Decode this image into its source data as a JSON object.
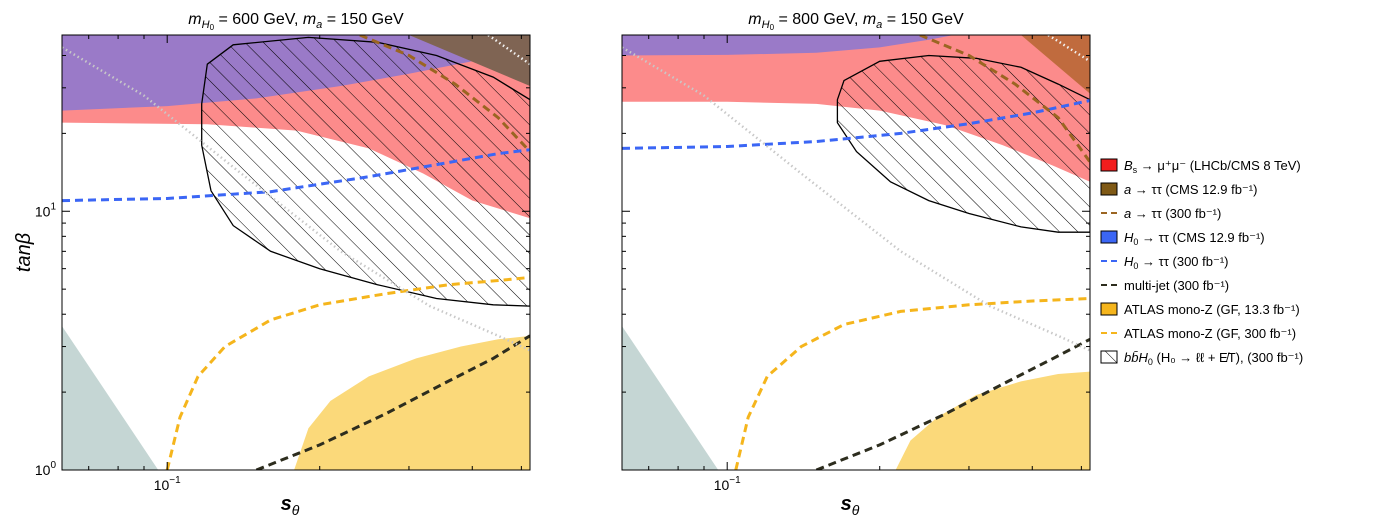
{
  "chart_data": [
    {
      "type": "area",
      "title": "m_{H0} = 600 GeV, m_a = 150 GeV",
      "title_parts": {
        "m1": "m",
        "m1sub": "H",
        "m1subsub": "0",
        "m1val": " = 600 GeV, ",
        "m2": "m",
        "m2sub": "a",
        "m2val": " = 150 GeV"
      },
      "xlabel": "s_θ",
      "xlabel_parts": {
        "main": "s",
        "sub": "θ"
      },
      "ylabel": "tanβ",
      "xscale": "log",
      "yscale": "log",
      "xlim": [
        0.062,
        0.52
      ],
      "ylim": [
        1,
        48
      ],
      "x_ticklabels": [
        {
          "value": 0.1,
          "base": "10",
          "exp": "−1"
        }
      ],
      "y_ticklabels": [
        {
          "value": 1,
          "base": "10",
          "exp": "0"
        },
        {
          "value": 10,
          "base": "10",
          "exp": "1"
        }
      ],
      "series": [
        {
          "name": "ATLAS mono-Z (GF, 13.3 fb⁻¹)",
          "kind": "region",
          "color": "#fbd97a",
          "boundary": [
            [
              0.178,
              1.0
            ],
            [
              0.19,
              1.45
            ],
            [
              0.21,
              1.85
            ],
            [
              0.25,
              2.3
            ],
            [
              0.31,
              2.7
            ],
            [
              0.38,
              3.0
            ],
            [
              0.45,
              3.2
            ],
            [
              0.52,
              3.3
            ]
          ]
        },
        {
          "name": "grey region",
          "kind": "region",
          "color": "#c5d6d4",
          "points": [
            [
              0.062,
              1.0
            ],
            [
              0.062,
              3.6
            ],
            [
              0.096,
              1.0
            ]
          ]
        },
        {
          "name": "B_s → μ⁺μ⁻ (LHCb/CMS 8 TeV)",
          "kind": "region",
          "color": "#fc8b8b",
          "lower_boundary": [
            [
              0.062,
              22.0
            ],
            [
              0.12,
              21.7
            ],
            [
              0.18,
              20.5
            ],
            [
              0.25,
              17.5
            ],
            [
              0.32,
              14.0
            ],
            [
              0.4,
              11.0
            ],
            [
              0.52,
              9.4
            ]
          ]
        },
        {
          "name": "purple region",
          "kind": "region",
          "color": "#9a7ac8",
          "lower_boundary": [
            [
              0.062,
              24.5
            ],
            [
              0.1,
              25.5
            ],
            [
              0.15,
              27.3
            ],
            [
              0.22,
              30.5
            ],
            [
              0.3,
              34.0
            ],
            [
              0.4,
              38.0
            ],
            [
              0.52,
              43.0
            ]
          ]
        },
        {
          "name": "a → ττ (CMS 12.9 fb⁻¹)",
          "kind": "region",
          "color": "#7f6453",
          "points": [
            [
              0.3,
              48
            ],
            [
              0.52,
              48
            ],
            [
              0.52,
              30.5
            ]
          ]
        },
        {
          "name": "H₀ → ττ (CMS 12.9 fb⁻¹)",
          "kind": "line",
          "color": "#3b66f5",
          "points": [
            [
              0.062,
              11.0
            ],
            [
              0.1,
              11.2
            ],
            [
              0.16,
              11.9
            ],
            [
              0.25,
              13.6
            ],
            [
              0.35,
              15.3
            ],
            [
              0.45,
              16.7
            ],
            [
              0.52,
              17.3
            ]
          ]
        },
        {
          "name": "a → ττ (300 fb⁻¹)",
          "kind": "line",
          "color": "#9b6522",
          "points": [
            [
              0.24,
              48
            ],
            [
              0.3,
              40
            ],
            [
              0.37,
              31
            ],
            [
              0.45,
              23
            ],
            [
              0.52,
              17
            ]
          ]
        },
        {
          "name": "ATLAS mono-Z (GF, 300 fb⁻¹)",
          "kind": "line",
          "color": "#f5b51c",
          "points": [
            [
              0.1,
              1.0
            ],
            [
              0.106,
              1.6
            ],
            [
              0.115,
              2.3
            ],
            [
              0.13,
              3.0
            ],
            [
              0.16,
              3.8
            ],
            [
              0.2,
              4.35
            ],
            [
              0.27,
              4.8
            ],
            [
              0.36,
              5.2
            ],
            [
              0.45,
              5.4
            ],
            [
              0.52,
              5.55
            ]
          ]
        },
        {
          "name": "multi-jet (300 fb⁻¹)",
          "kind": "line",
          "color": "#2d2d1e",
          "points": [
            [
              0.15,
              1.0
            ],
            [
              0.2,
              1.25
            ],
            [
              0.27,
              1.65
            ],
            [
              0.35,
              2.15
            ],
            [
              0.44,
              2.7
            ],
            [
              0.52,
              3.3
            ]
          ]
        },
        {
          "name": "grey dotted",
          "kind": "line",
          "color": "#c8c8c8",
          "points": [
            [
              0.062,
              43
            ],
            [
              0.09,
              28
            ],
            [
              0.14,
              14
            ],
            [
              0.22,
              7.0
            ],
            [
              0.33,
              4.3
            ],
            [
              0.45,
              3.3
            ],
            [
              0.52,
              2.9
            ]
          ]
        },
        {
          "name": "white dotted",
          "kind": "line",
          "color": "#f2f2f2",
          "points": [
            [
              0.43,
              48
            ],
            [
              0.52,
              37
            ]
          ]
        },
        {
          "name": "bb̄H₀ (H₀ → ℓℓ + E̸T), (300 fb⁻¹)",
          "kind": "hatched-contour",
          "color": "#000000",
          "points": [
            [
              0.12,
              37
            ],
            [
              0.135,
              44
            ],
            [
              0.19,
              47
            ],
            [
              0.26,
              45
            ],
            [
              0.34,
              40
            ],
            [
              0.44,
              33
            ],
            [
              0.52,
              27
            ],
            [
              0.52,
              4.3
            ],
            [
              0.44,
              4.35
            ],
            [
              0.34,
              4.6
            ],
            [
              0.26,
              5.2
            ],
            [
              0.2,
              6.0
            ],
            [
              0.16,
              7.0
            ],
            [
              0.135,
              8.8
            ],
            [
              0.122,
              12.0
            ],
            [
              0.117,
              18.0
            ],
            [
              0.117,
              26.0
            ],
            [
              0.12,
              37
            ]
          ]
        }
      ]
    },
    {
      "type": "area",
      "title": "m_{H0} = 800 GeV, m_a = 150 GeV",
      "title_parts": {
        "m1": "m",
        "m1sub": "H",
        "m1subsub": "0",
        "m1val": " = 800 GeV, ",
        "m2": "m",
        "m2sub": "a",
        "m2val": " = 150 GeV"
      },
      "xlabel": "s_θ",
      "xlabel_parts": {
        "main": "s",
        "sub": "θ"
      },
      "ylabel": "",
      "xscale": "log",
      "yscale": "log",
      "xlim": [
        0.062,
        0.52
      ],
      "ylim": [
        1,
        48
      ],
      "x_ticklabels": [
        {
          "value": 0.1,
          "base": "10",
          "exp": "−1"
        }
      ],
      "y_ticklabels": [],
      "series": [
        {
          "name": "ATLAS mono-Z (GF, 13.3 fb⁻¹)",
          "kind": "region",
          "color": "#fbd97a",
          "boundary": [
            [
              0.215,
              1.0
            ],
            [
              0.23,
              1.3
            ],
            [
              0.26,
              1.6
            ],
            [
              0.31,
              1.95
            ],
            [
              0.38,
              2.2
            ],
            [
              0.45,
              2.35
            ],
            [
              0.52,
              2.4
            ]
          ]
        },
        {
          "name": "grey region",
          "kind": "region",
          "color": "#c5d6d4",
          "points": [
            [
              0.062,
              1.0
            ],
            [
              0.062,
              3.6
            ],
            [
              0.096,
              1.0
            ]
          ]
        },
        {
          "name": "B_s → μ⁺μ⁻ (LHCb/CMS 8 TeV)",
          "kind": "region",
          "color": "#fc8b8b",
          "lower_boundary": [
            [
              0.062,
              26.5
            ],
            [
              0.1,
              26.5
            ],
            [
              0.15,
              26.0
            ],
            [
              0.2,
              24.5
            ],
            [
              0.27,
              21.5
            ],
            [
              0.35,
              18.0
            ],
            [
              0.44,
              15.0
            ],
            [
              0.52,
              13.0
            ]
          ]
        },
        {
          "name": "purple region",
          "kind": "region",
          "color": "#9a7ac8",
          "lower_boundary": [
            [
              0.062,
              40.0
            ],
            [
              0.1,
              40.2
            ],
            [
              0.15,
              41.0
            ],
            [
              0.2,
              43.0
            ],
            [
              0.25,
              46.0
            ],
            [
              0.28,
              48.0
            ]
          ]
        },
        {
          "name": "a → ττ (CMS 12.9 fb⁻¹)",
          "kind": "region",
          "color": "#c06b3e",
          "points": [
            [
              0.38,
              48
            ],
            [
              0.52,
              48
            ],
            [
              0.52,
              28.5
            ]
          ]
        },
        {
          "name": "H₀ → ττ (CMS 12.9 fb⁻¹)",
          "kind": "line",
          "color": "#3b66f5",
          "points": [
            [
              0.062,
              17.5
            ],
            [
              0.1,
              17.8
            ],
            [
              0.15,
              18.6
            ],
            [
              0.22,
              20.0
            ],
            [
              0.3,
              21.8
            ],
            [
              0.4,
              24.0
            ],
            [
              0.52,
              26.8
            ]
          ]
        },
        {
          "name": "a → ττ (300 fb⁻¹)",
          "kind": "line",
          "color": "#9b6522",
          "points": [
            [
              0.24,
              48
            ],
            [
              0.3,
              40
            ],
            [
              0.37,
              31
            ],
            [
              0.45,
              23
            ],
            [
              0.52,
              15.5
            ]
          ]
        },
        {
          "name": "ATLAS mono-Z (GF, 300 fb⁻¹)",
          "kind": "line",
          "color": "#f5b51c",
          "points": [
            [
              0.104,
              1.0
            ],
            [
              0.11,
              1.6
            ],
            [
              0.12,
              2.3
            ],
            [
              0.14,
              3.0
            ],
            [
              0.17,
              3.65
            ],
            [
              0.22,
              4.1
            ],
            [
              0.3,
              4.35
            ],
            [
              0.4,
              4.5
            ],
            [
              0.52,
              4.6
            ]
          ]
        },
        {
          "name": "multi-jet (300 fb⁻¹)",
          "kind": "line",
          "color": "#2d2d1e",
          "points": [
            [
              0.15,
              1.0
            ],
            [
              0.2,
              1.25
            ],
            [
              0.27,
              1.65
            ],
            [
              0.35,
              2.15
            ],
            [
              0.44,
              2.7
            ],
            [
              0.52,
              3.2
            ]
          ]
        },
        {
          "name": "grey dotted",
          "kind": "line",
          "color": "#c8c8c8",
          "points": [
            [
              0.062,
              43
            ],
            [
              0.09,
              28
            ],
            [
              0.14,
              14
            ],
            [
              0.22,
              7.0
            ],
            [
              0.33,
              4.3
            ],
            [
              0.45,
              3.3
            ],
            [
              0.52,
              2.9
            ]
          ]
        },
        {
          "name": "white dotted",
          "kind": "line",
          "color": "#f2f2f2",
          "points": [
            [
              0.43,
              48
            ],
            [
              0.52,
              38
            ]
          ]
        },
        {
          "name": "bb̄H₀ (H₀ → ℓℓ + E̸T), (300 fb⁻¹)",
          "kind": "hatched-contour",
          "color": "#000000",
          "points": [
            [
              0.17,
              32
            ],
            [
              0.2,
              38
            ],
            [
              0.25,
              40
            ],
            [
              0.31,
              39
            ],
            [
              0.38,
              36
            ],
            [
              0.45,
              31
            ],
            [
              0.52,
              27
            ],
            [
              0.52,
              8.3
            ],
            [
              0.45,
              8.3
            ],
            [
              0.38,
              8.7
            ],
            [
              0.3,
              9.8
            ],
            [
              0.25,
              11.0
            ],
            [
              0.21,
              13.0
            ],
            [
              0.18,
              17.0
            ],
            [
              0.165,
              22.0
            ],
            [
              0.165,
              27.0
            ],
            [
              0.17,
              32
            ]
          ]
        }
      ]
    }
  ],
  "legend": {
    "placement": "right",
    "items": [
      {
        "kind": "box",
        "color": "#f21d1d",
        "main": "B",
        "sub": "s",
        "rest": " → μ⁺μ⁻ (LHCb/CMS 8 TeV)"
      },
      {
        "kind": "box",
        "color": "#7f5915",
        "main": "a",
        "sub": "",
        "rest": " → ττ (CMS 12.9 fb⁻¹)"
      },
      {
        "kind": "dash",
        "color": "#9b6522",
        "main": "a",
        "sub": "",
        "rest": " → ττ (300 fb⁻¹)"
      },
      {
        "kind": "box",
        "color": "#3b66f5",
        "main": "H",
        "sub": "0",
        "rest": " → ττ (CMS 12.9 fb⁻¹)"
      },
      {
        "kind": "dash",
        "color": "#3b66f5",
        "main": "H",
        "sub": "0",
        "rest": " → ττ (300 fb⁻¹)"
      },
      {
        "kind": "dash",
        "color": "#2d2d1e",
        "main": "",
        "sub": "",
        "rest": "multi-jet (300 fb⁻¹)"
      },
      {
        "kind": "box",
        "color": "#f5b51c",
        "main": "",
        "sub": "",
        "rest": "ATLAS mono-Z (GF, 13.3 fb⁻¹)"
      },
      {
        "kind": "dash",
        "color": "#f5b51c",
        "main": "",
        "sub": "",
        "rest": "ATLAS mono-Z (GF, 300 fb⁻¹)"
      },
      {
        "kind": "hatch",
        "color": "#000000",
        "main": "bb̄H",
        "sub": "0",
        "rest": " (H₀ → ℓℓ + E̸T), (300 fb⁻¹)"
      }
    ]
  }
}
